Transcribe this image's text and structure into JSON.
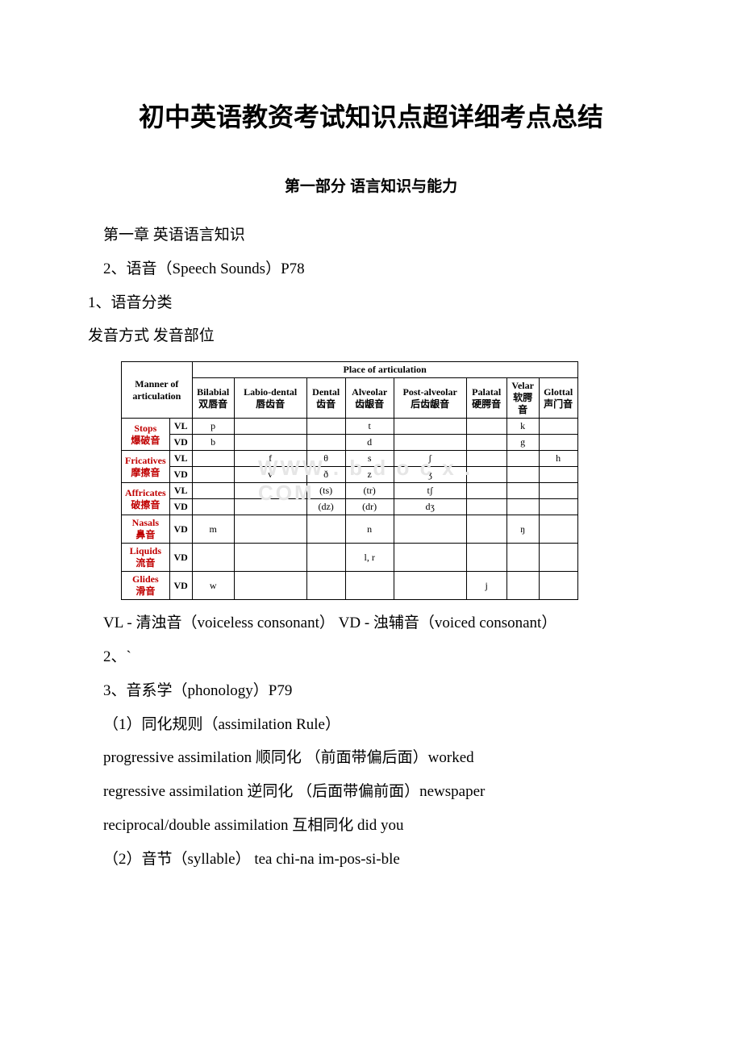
{
  "title": "初中英语教资考试知识点超详细考点总结",
  "subtitle": "第一部分 语言知识与能力",
  "lines": {
    "l1": "第一章 英语语言知识",
    "l2": "2、语音（Speech Sounds）P78",
    "l3": "1、语音分类",
    "l4": "发音方式 发音部位",
    "l5": "VL - 清浊音（voiceless consonant） VD - 浊辅音（voiced consonant）",
    "l6": "2、`",
    "l7": "3、音系学（phonology）P79",
    "l8": "（1）同化规则（assimilation Rule）",
    "l9": "progressive assimilation 顺同化 （前面带偏后面）worked",
    "l10": "regressive assimilation 逆同化 （后面带偏前面）newspaper",
    "l11": "reciprocal/double assimilation 互相同化 did you",
    "l12": "（2）音节（syllable） tea chi-na im-pos-si-ble"
  },
  "table": {
    "header_top": {
      "manner1": "Manner of",
      "manner2": "articulation",
      "place": "Place of articulation"
    },
    "cols": [
      {
        "en": "Bilabial",
        "cn": "双唇音"
      },
      {
        "en": "Labio-dental",
        "cn": "唇齿音"
      },
      {
        "en": "Dental",
        "cn": "齿音"
      },
      {
        "en": "Alveolar",
        "cn": "齿龈音"
      },
      {
        "en": "Post-alveolar",
        "cn": "后齿龈音"
      },
      {
        "en": "Palatal",
        "cn": "硬腭音"
      },
      {
        "en": "Velar",
        "cn": "软腭音"
      },
      {
        "en": "Glottal",
        "cn": "声门音"
      }
    ],
    "rows": [
      {
        "label_en": "Stops",
        "label_cn": "爆破音",
        "sub": [
          {
            "v": "VL",
            "cells": [
              "p",
              "",
              "",
              "t",
              "",
              "",
              "k",
              ""
            ]
          },
          {
            "v": "VD",
            "cells": [
              "b",
              "",
              "",
              "d",
              "",
              "",
              "g",
              ""
            ]
          }
        ]
      },
      {
        "label_en": "Fricatives",
        "label_cn": "摩擦音",
        "sub": [
          {
            "v": "VL",
            "cells": [
              "",
              "f",
              "θ",
              "s",
              "ʃ",
              "",
              "",
              "h"
            ]
          },
          {
            "v": "VD",
            "cells": [
              "",
              "v",
              "ð",
              "z",
              "ʒ",
              "",
              "",
              ""
            ]
          }
        ]
      },
      {
        "label_en": "Affricates",
        "label_cn": "破擦音",
        "sub": [
          {
            "v": "VL",
            "cells": [
              "",
              "",
              "(ts)",
              "(tr)",
              "tʃ",
              "",
              "",
              ""
            ]
          },
          {
            "v": "VD",
            "cells": [
              "",
              "",
              "(dz)",
              "(dr)",
              "dʒ",
              "",
              "",
              ""
            ]
          }
        ]
      },
      {
        "label_en": "Nasals",
        "label_cn": "鼻音",
        "sub": [
          {
            "v": "VD",
            "cells": [
              "m",
              "",
              "",
              "n",
              "",
              "",
              "ŋ",
              ""
            ]
          }
        ]
      },
      {
        "label_en": "Liquids",
        "label_cn": "流音",
        "sub": [
          {
            "v": "VD",
            "cells": [
              "",
              "",
              "",
              "l, r",
              "",
              "",
              "",
              ""
            ]
          }
        ]
      },
      {
        "label_en": "Glides",
        "label_cn": "滑音",
        "sub": [
          {
            "v": "VD",
            "cells": [
              "w",
              "",
              "",
              "",
              "",
              "j",
              "",
              ""
            ]
          }
        ]
      }
    ]
  },
  "watermark": "WWW . b d o c x . COM",
  "colors": {
    "row_label": "#c00000",
    "text": "#000000",
    "watermark": "#e6e6e6",
    "border": "#000000"
  }
}
